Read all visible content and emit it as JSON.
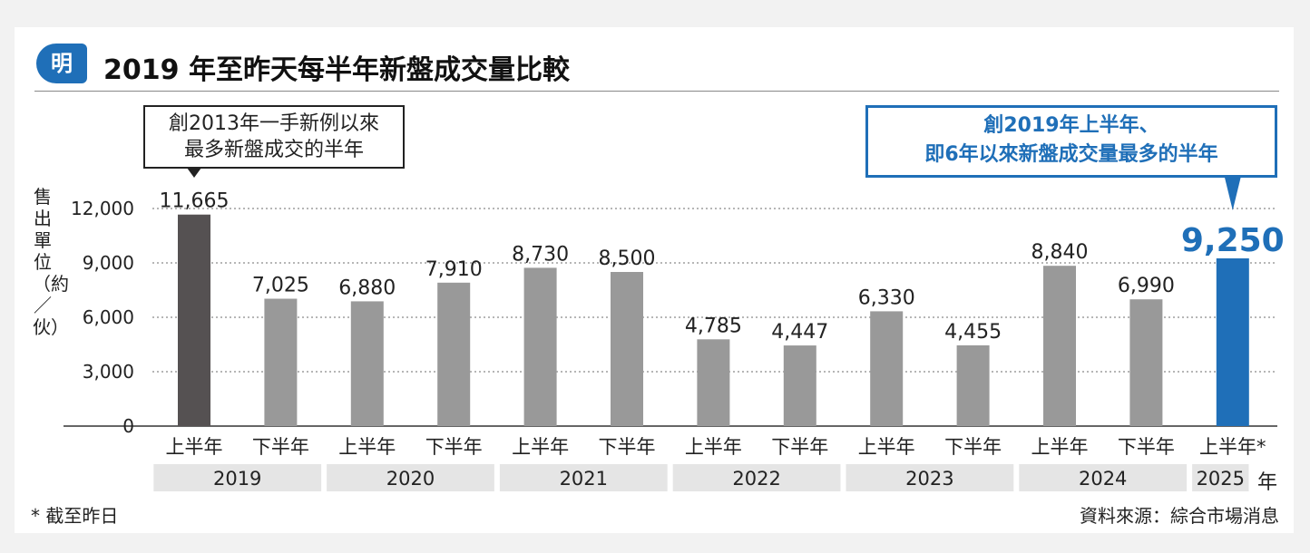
{
  "header": {
    "logo_text": "明",
    "title": "2019 年至昨天每半年新盤成交量比較"
  },
  "callouts": {
    "left_line1": "創2013年一手新例以來",
    "left_line2": "最多新盤成交的半年",
    "right_line1": "創2019年上半年、",
    "right_line2": "即6年以來新盤成交量最多的半年"
  },
  "footer": {
    "footnote": "* 截至昨日",
    "source": "資料來源：綜合市場消息",
    "year_unit": "年"
  },
  "colors": {
    "highlight_dark": "#555152",
    "bar_gray": "#999999",
    "highlight_blue": "#1f6fb8",
    "year_band": "#e5e5e5"
  },
  "chart_data": {
    "type": "bar",
    "title": "2019 年至昨天每半年新盤成交量比較",
    "ylabel": "售出單位（約／伙）",
    "ylim": [
      0,
      12000
    ],
    "yticks": [
      "0",
      "3,000",
      "6,000",
      "9,000",
      "12,000"
    ],
    "grid": true,
    "bars": [
      {
        "half": "上半年",
        "year": "2019",
        "value": 11665,
        "label": "11,665",
        "color": "#555152"
      },
      {
        "half": "下半年",
        "year": "2019",
        "value": 7025,
        "label": "7,025",
        "color": "#999999"
      },
      {
        "half": "上半年",
        "year": "2020",
        "value": 6880,
        "label": "6,880",
        "color": "#999999"
      },
      {
        "half": "下半年",
        "year": "2020",
        "value": 7910,
        "label": "7,910",
        "color": "#999999"
      },
      {
        "half": "上半年",
        "year": "2021",
        "value": 8730,
        "label": "8,730",
        "color": "#999999"
      },
      {
        "half": "下半年",
        "year": "2021",
        "value": 8500,
        "label": "8,500",
        "color": "#999999"
      },
      {
        "half": "上半年",
        "year": "2022",
        "value": 4785,
        "label": "4,785",
        "color": "#999999"
      },
      {
        "half": "下半年",
        "year": "2022",
        "value": 4447,
        "label": "4,447",
        "color": "#999999"
      },
      {
        "half": "上半年",
        "year": "2023",
        "value": 6330,
        "label": "6,330",
        "color": "#999999"
      },
      {
        "half": "下半年",
        "year": "2023",
        "value": 4455,
        "label": "4,455",
        "color": "#999999"
      },
      {
        "half": "上半年",
        "year": "2024",
        "value": 8840,
        "label": "8,840",
        "color": "#999999"
      },
      {
        "half": "下半年",
        "year": "2024",
        "value": 6990,
        "label": "6,990",
        "color": "#999999"
      },
      {
        "half": "上半年*",
        "year": "2025",
        "value": 9250,
        "label": "9,250",
        "color": "#1f6fb8",
        "emphasis": true
      }
    ],
    "years": [
      "2019",
      "2020",
      "2021",
      "2022",
      "2023",
      "2024",
      "2025"
    ]
  }
}
